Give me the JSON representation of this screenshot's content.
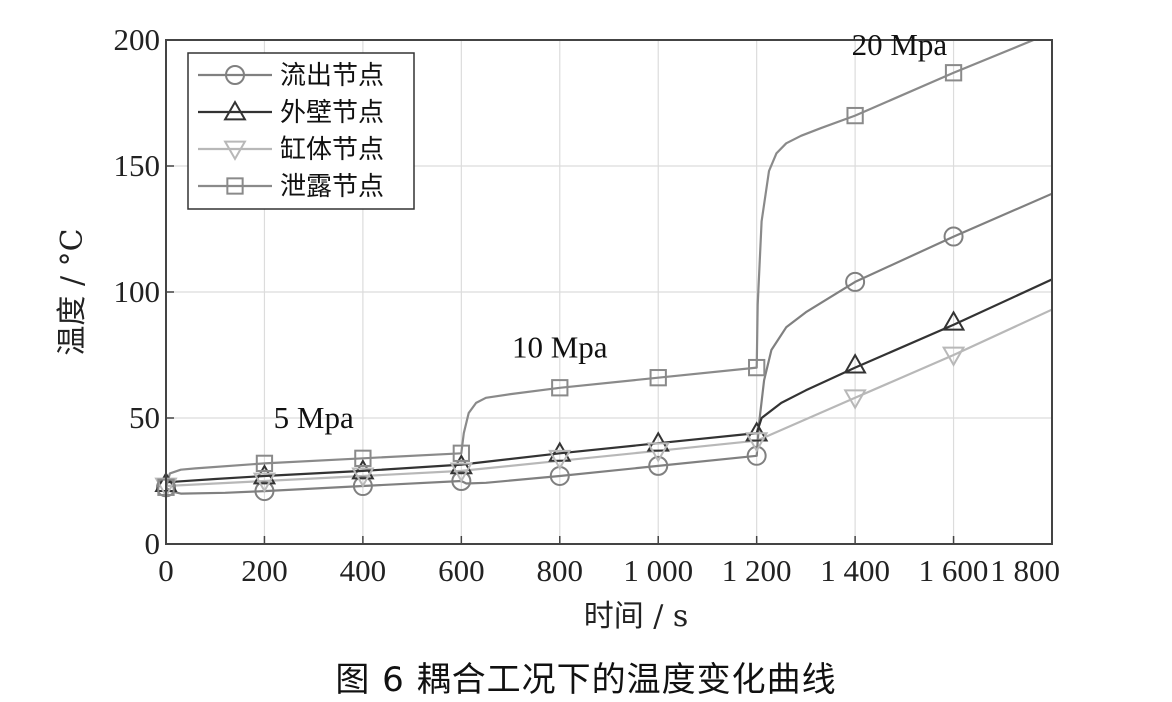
{
  "caption": "图 6 耦合工况下的温度变化曲线",
  "chart_data": {
    "type": "line",
    "title": "",
    "xlabel": "时间 / s",
    "ylabel": "温度 / °C",
    "xlim": [
      0,
      1800
    ],
    "ylim": [
      0,
      200
    ],
    "xticks": [
      0,
      200,
      400,
      600,
      800,
      1000,
      1200,
      1400,
      1600,
      1800
    ],
    "xtick_labels": [
      "0",
      "200",
      "400",
      "600",
      "800",
      "1 000",
      "1 200",
      "1 400",
      "1 600",
      "1 800"
    ],
    "yticks": [
      0,
      50,
      100,
      150,
      200
    ],
    "ytick_labels": [
      "0",
      "50",
      "100",
      "150",
      "200"
    ],
    "grid": true,
    "legend_position": "top-left",
    "annotations": [
      {
        "text": "5 Mpa",
        "x": 300,
        "y": 50
      },
      {
        "text": "10 Mpa",
        "x": 800,
        "y": 78
      },
      {
        "text": "20 Mpa",
        "x": 1490,
        "y": 198
      }
    ],
    "series": [
      {
        "name": "流出节点",
        "marker": "circle",
        "color": "#808080",
        "markers_x": [
          0,
          200,
          400,
          600,
          800,
          1000,
          1200,
          1400,
          1600
        ],
        "markers_y": [
          22.5,
          21,
          23,
          25,
          27,
          31,
          35,
          104,
          122
        ],
        "curve_x": [
          0,
          8,
          30,
          120,
          200,
          400,
          600,
          610,
          650,
          800,
          1000,
          1200,
          1205,
          1215,
          1230,
          1260,
          1300,
          1400,
          1600,
          1800
        ],
        "curve_y": [
          22.5,
          21,
          20,
          20.3,
          21,
          23,
          25,
          24,
          24.3,
          27,
          31,
          35,
          48,
          65,
          77,
          86,
          92,
          104,
          122,
          139
        ]
      },
      {
        "name": "外壁节点",
        "marker": "triangle-up",
        "color": "#333333",
        "markers_x": [
          0,
          200,
          400,
          600,
          800,
          1000,
          1200,
          1400,
          1600
        ],
        "markers_y": [
          24,
          27,
          29,
          31,
          36,
          40,
          44,
          71,
          88
        ],
        "curve_x": [
          0,
          100,
          200,
          400,
          600,
          800,
          1000,
          1200,
          1210,
          1250,
          1300,
          1400,
          1600,
          1800
        ],
        "curve_y": [
          24.5,
          25.8,
          27,
          29,
          31.5,
          36,
          40,
          44,
          50,
          56,
          61,
          70,
          87,
          105
        ]
      },
      {
        "name": "缸体节点",
        "marker": "triangle-down",
        "color": "#b8b8b8",
        "markers_x": [
          0,
          200,
          400,
          600,
          800,
          1000,
          1200,
          1400,
          1600
        ],
        "markers_y": [
          23,
          25,
          27,
          29,
          34,
          37,
          41,
          58,
          75
        ],
        "curve_x": [
          0,
          200,
          400,
          600,
          800,
          1000,
          1200,
          1400,
          1600,
          1800
        ],
        "curve_y": [
          23,
          25,
          27,
          29,
          33,
          37,
          41,
          58,
          75,
          93
        ]
      },
      {
        "name": "泄露节点",
        "marker": "square",
        "color": "#8a8a8a",
        "markers_x": [
          0,
          200,
          400,
          600,
          800,
          1000,
          1200,
          1400,
          1600
        ],
        "markers_y": [
          22.5,
          32,
          34,
          36,
          62,
          66,
          70,
          170,
          187
        ],
        "curve_x": [
          0,
          8,
          30,
          60,
          200,
          400,
          600,
          605,
          615,
          630,
          650,
          700,
          800,
          1000,
          1200,
          1202,
          1210,
          1225,
          1240,
          1260,
          1290,
          1330,
          1400,
          1600,
          1800
        ],
        "curve_y": [
          22.5,
          28,
          29.5,
          30,
          32,
          34,
          36,
          44,
          52,
          56,
          58,
          59.5,
          62,
          66,
          70,
          95,
          128,
          148,
          155,
          159,
          162,
          165,
          170,
          187,
          203
        ]
      }
    ]
  }
}
